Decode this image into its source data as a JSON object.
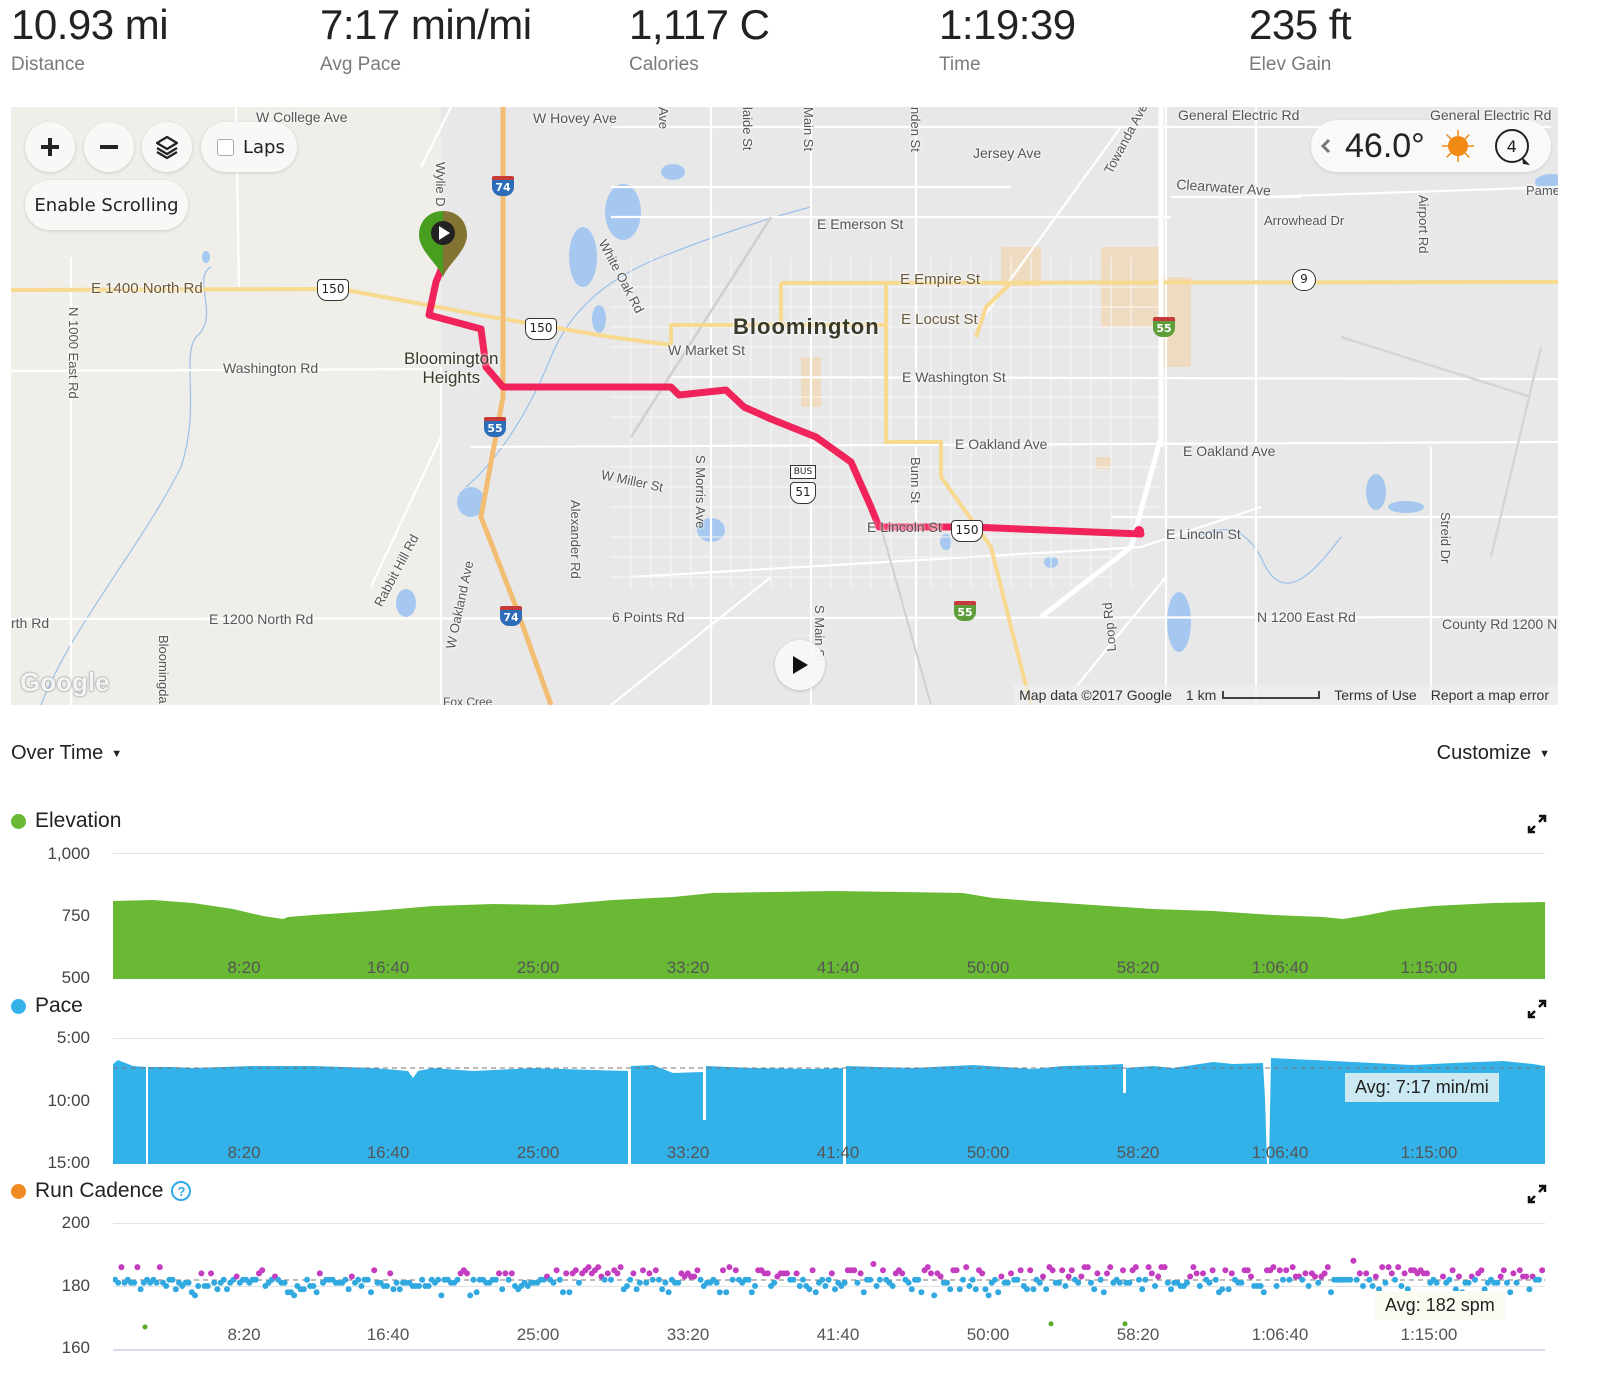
{
  "stats": [
    {
      "value": "10.93 mi",
      "label": "Distance"
    },
    {
      "value": "7:17 min/mi",
      "label": "Avg Pace"
    },
    {
      "value": "1,117 C",
      "label": "Calories"
    },
    {
      "value": "1:19:39",
      "label": "Time"
    },
    {
      "value": "235 ft",
      "label": "Elev Gain"
    }
  ],
  "map": {
    "controls": {
      "zoom_in": "+",
      "zoom_out": "−",
      "laps_label": "Laps",
      "laps_checked": false,
      "enable_scrolling": "Enable Scrolling"
    },
    "weather": {
      "temperature": "46.0°",
      "condition": "sunny",
      "wind_speed": "4"
    },
    "labels": {
      "city": "Bloomington",
      "town_line1": "Bloomington",
      "town_line2": "Heights",
      "w_college_ave": "W College Ave",
      "w_hovey_ave": "W Hovey Ave",
      "e_1400_north_rd": "E 1400 North Rd",
      "washington_rd": "Washington Rd",
      "n_1000_east_rd": "N 1000 East Rd",
      "e_1200_north_rd": "E 1200 North Rd",
      "rth_rd": "rth Rd",
      "rabbit_hill_rd": "Rabbit Hill Rd",
      "w_oakland_ave": "W Oakland Ave",
      "bloomingdale": "Bloomingda",
      "wylie_dr": "Wylie D",
      "white_oak_rd": "White Oak Rd",
      "alexander_rd": "Alexander Rd",
      "s_morris_ave": "S Morris Ave",
      "w_miller_st": "W Miller St",
      "six_points_rd": "6 Points Rd",
      "s_main_st": "S Main St",
      "w_market_st": "W Market St",
      "e_emerson_st": "E Emerson St",
      "e_empire_st": "E Empire St",
      "e_locust_st": "E Locust St",
      "e_washington_st": "E Washington St",
      "e_oakland_ave_1": "E Oakland Ave",
      "e_oakland_ave_2": "E Oakland Ave",
      "bunn_st": "Bunn St",
      "e_lincoln_st_1": "E Lincoln St",
      "e_lincoln_st_2": "E Lincoln St",
      "jersey_ave": "Jersey Ave",
      "towanda_ave": "Towanda Ave",
      "general_electric_rd_1": "General Electric Rd",
      "general_electric_rd_2": "General Electric Rd",
      "clearwater_ave": "Clearwater Ave",
      "arrowhead_dr": "Arrowhead Dr",
      "airport_rd": "Airport Rd",
      "pame": "Pame",
      "loop_rd": "Loop Rd",
      "n_1200_east_rd": "N 1200 East Rd",
      "county_rd_1200": "County Rd 1200 N",
      "streid_dr": "Streid Dr",
      "main_st_top": "Main St",
      "adelaide_st": "laide St",
      "linden_st": "nden St",
      "ave_top": "Ave",
      "fox_creek": "Fox Cree"
    },
    "shields": {
      "us150_a": "150",
      "us150_b": "150",
      "us150_c": "150",
      "i74_a": "74",
      "i74_b": "74",
      "i55_a": "55",
      "i55_b": "55",
      "i55_c": "55",
      "bus51_top": "BUS",
      "bus51": "51",
      "il9": "9"
    },
    "google_logo": "Google",
    "footer": {
      "map_data": "Map data ©2017 Google",
      "scale": "1 km",
      "terms": "Terms of Use",
      "report": "Report a map error"
    },
    "colors": {
      "route": "#f0245a",
      "start_pin": "#4a9e1f"
    }
  },
  "charts_header": {
    "view_select": "Over Time",
    "customize": "Customize"
  },
  "chart_data": [
    {
      "type": "area",
      "title": "Elevation",
      "color": "#6ab934",
      "ylim": [
        500,
        1000
      ],
      "y_ticks": [
        "1,000",
        "750",
        "500"
      ],
      "x_ticks": [
        "8:20",
        "16:40",
        "25:00",
        "33:20",
        "41:40",
        "50:00",
        "58:20",
        "1:06:40",
        "1:15:00"
      ],
      "x_seconds": [
        0,
        300,
        500,
        600,
        800,
        1000,
        1200,
        1500,
        1800,
        2000,
        2200,
        2400,
        2700,
        3000,
        3300,
        3600,
        3900,
        4100,
        4300,
        4500,
        4779
      ],
      "values": [
        810,
        810,
        785,
        760,
        765,
        775,
        790,
        785,
        795,
        815,
        830,
        832,
        832,
        835,
        830,
        800,
        785,
        765,
        760,
        790,
        808
      ]
    },
    {
      "type": "area",
      "title": "Pace",
      "color": "#33b2ea",
      "ylim_labels": [
        "5:00",
        "10:00",
        "15:00"
      ],
      "inverted": true,
      "avg_label": "Avg: 7:17 min/mi",
      "avg_value": "7:17",
      "x_ticks": [
        "8:20",
        "16:40",
        "25:00",
        "33:20",
        "41:40",
        "50:00",
        "58:20",
        "1:06:40",
        "1:15:00"
      ],
      "x_seconds": [
        0,
        600,
        1200,
        1800,
        2400,
        3000,
        3600,
        3900,
        4200,
        4500,
        4779
      ],
      "values_min_per_mi": [
        "7:05",
        "7:15",
        "7:20",
        "7:25",
        "7:20",
        "7:15",
        "7:10",
        "6:55",
        "7:00",
        "7:00",
        "7:05"
      ],
      "dropouts_seconds": [
        200,
        1800,
        2000,
        2500,
        3900
      ]
    },
    {
      "type": "scatter",
      "title": "Run Cadence",
      "color": "#f08a24",
      "ylim": [
        160,
        200
      ],
      "y_ticks": [
        "200",
        "180",
        "160"
      ],
      "avg_label": "Avg: 182 spm",
      "avg_value": 182,
      "x_ticks": [
        "8:20",
        "16:40",
        "25:00",
        "33:20",
        "41:40",
        "50:00",
        "58:20",
        "1:06:40",
        "1:15:00"
      ],
      "series": [
        {
          "name": "above average",
          "color": "#c43cbf",
          "range": [
            183,
            188
          ]
        },
        {
          "name": "around average",
          "color": "#31a9e0",
          "range": [
            174,
            182
          ]
        },
        {
          "name": "low outliers",
          "color": "#5aaa2c",
          "values": [
            167,
            168,
            168
          ]
        }
      ]
    }
  ]
}
